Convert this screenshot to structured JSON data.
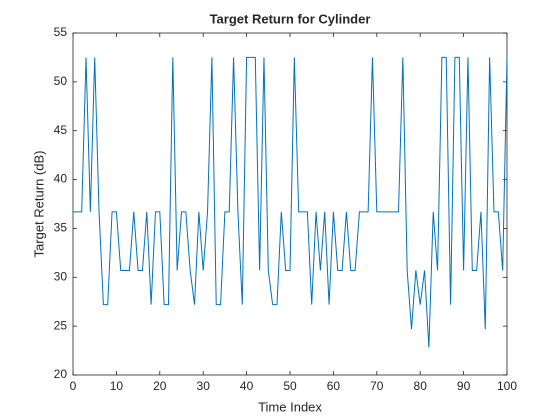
{
  "chart_data": {
    "type": "line",
    "title": "Target Return for Cylinder",
    "xlabel": "Time Index",
    "ylabel": "Target Return (dB)",
    "x": [
      0,
      1,
      2,
      3,
      4,
      5,
      6,
      7,
      8,
      9,
      10,
      11,
      12,
      13,
      14,
      15,
      16,
      17,
      18,
      19,
      20,
      21,
      22,
      23,
      24,
      25,
      26,
      27,
      28,
      29,
      30,
      31,
      32,
      33,
      34,
      35,
      36,
      37,
      38,
      39,
      40,
      41,
      42,
      43,
      44,
      45,
      46,
      47,
      48,
      49,
      50,
      51,
      52,
      53,
      54,
      55,
      56,
      57,
      58,
      59,
      60,
      61,
      62,
      63,
      64,
      65,
      66,
      67,
      68,
      69,
      70,
      71,
      72,
      73,
      74,
      75,
      76,
      77,
      78,
      79,
      80,
      81,
      82,
      83,
      84,
      85,
      86,
      87,
      88,
      89,
      90,
      91,
      92,
      93,
      94,
      95,
      96,
      97,
      98,
      99,
      100
    ],
    "series": [
      {
        "name": "Target Return",
        "color": "#0072bd",
        "values": [
          36.7,
          36.7,
          36.7,
          52.5,
          36.7,
          52.5,
          36.7,
          27.2,
          27.2,
          36.7,
          36.7,
          30.7,
          30.7,
          30.7,
          36.7,
          30.7,
          30.7,
          36.7,
          27.2,
          36.7,
          36.7,
          27.2,
          27.2,
          52.5,
          30.7,
          36.7,
          36.7,
          30.7,
          27.2,
          36.7,
          30.7,
          36.7,
          52.5,
          27.2,
          27.2,
          36.7,
          36.7,
          52.5,
          36.7,
          27.2,
          52.5,
          52.5,
          52.5,
          30.7,
          52.5,
          30.7,
          27.2,
          27.2,
          36.7,
          30.7,
          30.7,
          52.5,
          36.7,
          36.7,
          36.7,
          27.2,
          36.7,
          30.7,
          36.7,
          27.2,
          36.7,
          30.7,
          30.7,
          36.7,
          30.7,
          30.7,
          36.7,
          36.7,
          36.7,
          52.5,
          36.7,
          36.7,
          36.7,
          36.7,
          36.7,
          36.7,
          52.5,
          30.7,
          24.7,
          30.7,
          27.2,
          30.7,
          22.8,
          36.7,
          30.7,
          52.5,
          52.5,
          27.2,
          52.5,
          52.5,
          30.7,
          52.5,
          30.7,
          30.7,
          36.7,
          24.7,
          52.5,
          36.7,
          36.7,
          30.7,
          52.5
        ]
      }
    ],
    "xlim": [
      0,
      100
    ],
    "xticks": [
      0,
      10,
      20,
      30,
      40,
      50,
      60,
      70,
      80,
      90,
      100
    ],
    "ylim": [
      20,
      55
    ],
    "yticks": [
      20,
      25,
      30,
      35,
      40,
      45,
      50,
      55
    ]
  }
}
